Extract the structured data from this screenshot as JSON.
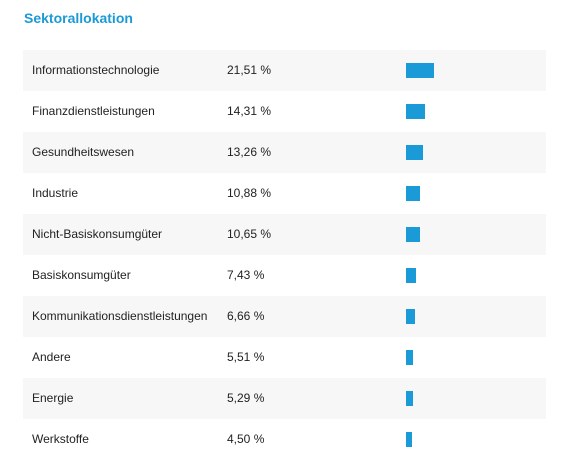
{
  "title": "Sektorallokation",
  "chart_data": {
    "type": "bar",
    "title": "Sektorallokation",
    "orientation": "horizontal",
    "unit": "%",
    "categories": [
      "Informationstechnologie",
      "Finanzdienstleistungen",
      "Gesundheitswesen",
      "Industrie",
      "Nicht-Basiskonsumgüter",
      "Basiskonsumgüter",
      "Kommunikationsdienstleistungen",
      "Andere",
      "Energie",
      "Werkstoffe"
    ],
    "values": [
      21.51,
      14.31,
      13.26,
      10.88,
      10.65,
      7.43,
      6.66,
      5.51,
      5.29,
      4.5
    ],
    "value_labels": [
      "21,51 %",
      "14,31 %",
      "13,26 %",
      "10,88 %",
      "10,65 %",
      "7,43 %",
      "6,66 %",
      "5,51 %",
      "5,29 %",
      "4,50 %"
    ],
    "xlim": [
      0,
      100
    ],
    "bar_color": "#1a9ad6",
    "title_color": "#1a9ad6",
    "row_shade_color": "#f7f7f7"
  }
}
